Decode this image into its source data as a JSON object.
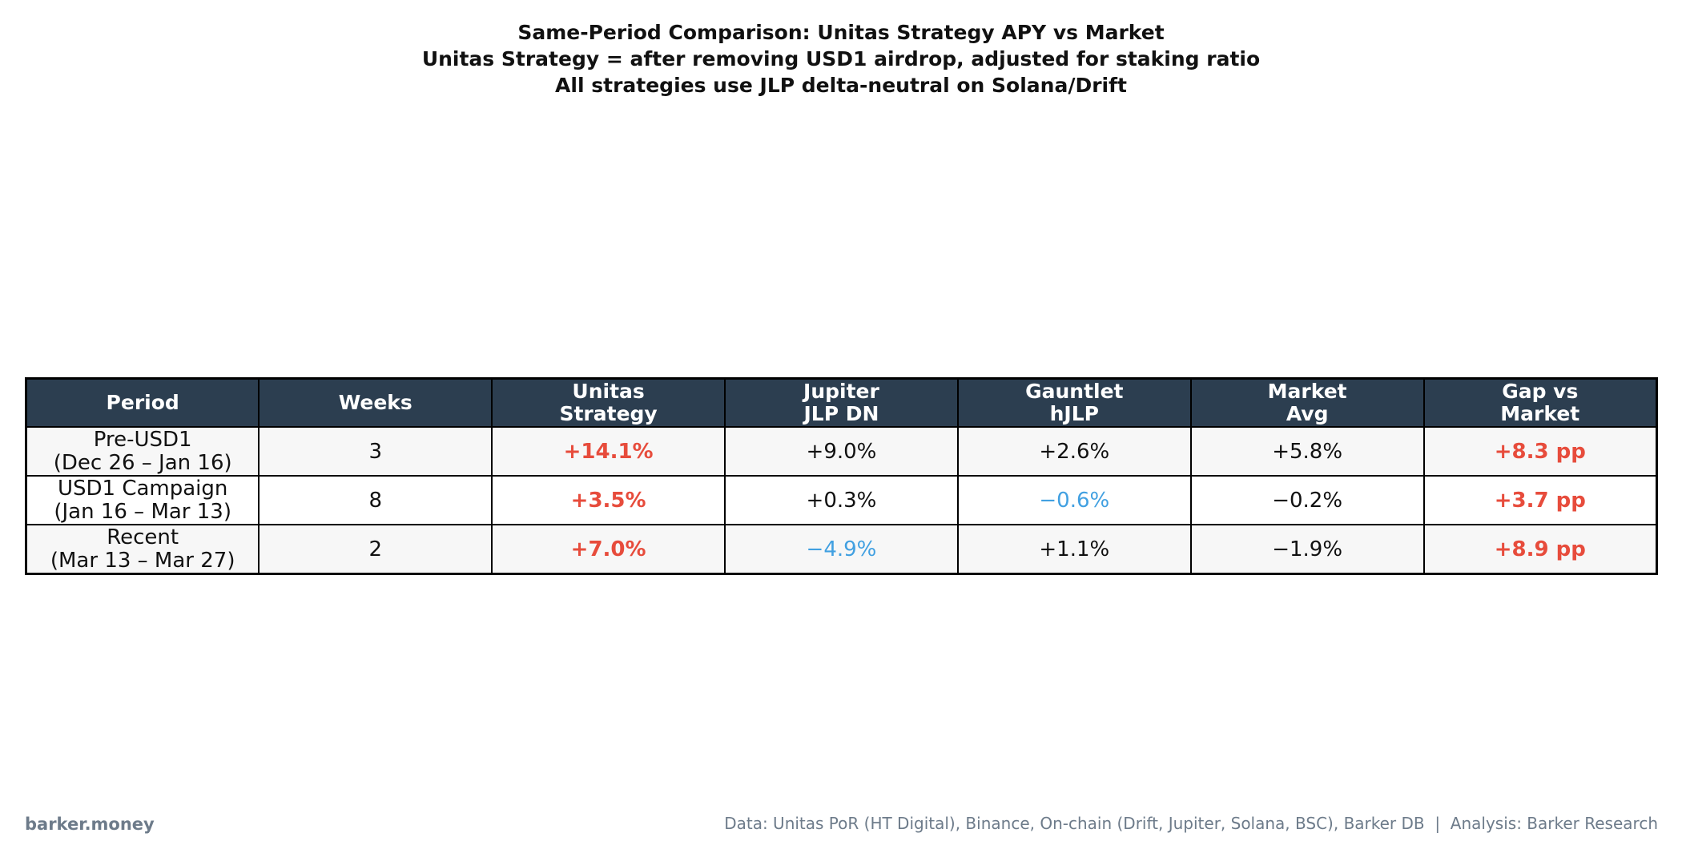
{
  "title": {
    "line1": "Same-Period Comparison: Unitas Strategy APY vs Market",
    "line2": "Unitas Strategy = after removing USD1 airdrop, adjusted for staking ratio",
    "line3": "All strategies use JLP delta-neutral on Solana/Drift"
  },
  "colors": {
    "header_bg": "#2c3e50",
    "header_text": "#ffffff",
    "highlight_red": "#e74c3c",
    "negative_blue": "#41a0e1",
    "row_alt_bg": "#f7f7f7",
    "border": "#000000",
    "footer_gray": "#6d7b8a"
  },
  "chart_data": {
    "type": "table",
    "columns": [
      {
        "line1": "Period",
        "line2": ""
      },
      {
        "line1": "Weeks",
        "line2": ""
      },
      {
        "line1": "Unitas",
        "line2": "Strategy"
      },
      {
        "line1": "Jupiter",
        "line2": "JLP DN"
      },
      {
        "line1": "Gauntlet",
        "line2": "hJLP"
      },
      {
        "line1": "Market",
        "line2": "Avg"
      },
      {
        "line1": "Gap vs",
        "line2": "Market"
      }
    ],
    "rows": [
      {
        "period_line1": "Pre-USD1",
        "period_line2": "(Dec 26 – Jan 16)",
        "weeks": "3",
        "unitas_strategy": "+14.1%",
        "jupiter_jlp_dn": "+9.0%",
        "gauntlet_hjlp": "+2.6%",
        "market_avg": "+5.8%",
        "gap_vs_market": "+8.3 pp",
        "styles": {
          "unitas_strategy": "red",
          "jupiter_jlp_dn": "black",
          "gauntlet_hjlp": "black",
          "market_avg": "black",
          "gap_vs_market": "red"
        }
      },
      {
        "period_line1": "USD1 Campaign",
        "period_line2": "(Jan 16 – Mar 13)",
        "weeks": "8",
        "unitas_strategy": "+3.5%",
        "jupiter_jlp_dn": "+0.3%",
        "gauntlet_hjlp": "−0.6%",
        "market_avg": "−0.2%",
        "gap_vs_market": "+3.7 pp",
        "styles": {
          "unitas_strategy": "red",
          "jupiter_jlp_dn": "black",
          "gauntlet_hjlp": "blue",
          "market_avg": "black",
          "gap_vs_market": "red"
        }
      },
      {
        "period_line1": "Recent",
        "period_line2": "(Mar 13 – Mar 27)",
        "weeks": "2",
        "unitas_strategy": "+7.0%",
        "jupiter_jlp_dn": "−4.9%",
        "gauntlet_hjlp": "+1.1%",
        "market_avg": "−1.9%",
        "gap_vs_market": "+8.9 pp",
        "styles": {
          "unitas_strategy": "red",
          "jupiter_jlp_dn": "blue",
          "gauntlet_hjlp": "black",
          "market_avg": "black",
          "gap_vs_market": "red"
        }
      }
    ]
  },
  "footer": {
    "brand": "barker.money",
    "source": "Data: Unitas PoR (HT Digital), Binance, On-chain (Drift, Jupiter, Solana, BSC), Barker DB  |  Analysis: Barker Research"
  }
}
